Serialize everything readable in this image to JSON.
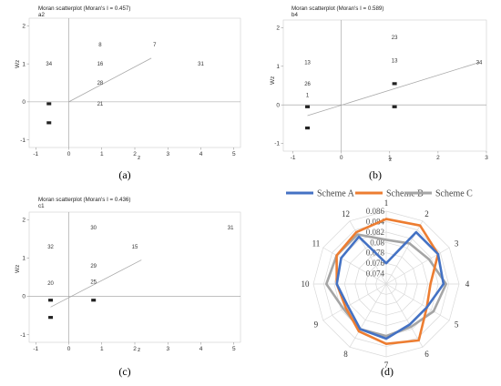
{
  "colors": {
    "schemeA": "#4472C4",
    "schemeB": "#ED7D31",
    "schemeC": "#A5A5A5"
  },
  "chart_data": [
    {
      "type": "scatter",
      "caption": "(a)",
      "title": "Moran scatterplot (Moran's I = 0.457)",
      "subtitle": "a2",
      "xlabel": "z",
      "ylabel": "Wz",
      "xlim": [
        -1.2,
        5.2
      ],
      "ylim": [
        -1.2,
        2.2
      ],
      "xticks": [
        -1,
        0,
        1,
        2,
        3,
        4,
        5
      ],
      "yticks": [
        -1,
        0,
        1,
        2
      ],
      "points": [
        {
          "x": -0.6,
          "y": 1.0,
          "label": "34"
        },
        {
          "x": -0.6,
          "y": -0.05,
          "label": ""
        },
        {
          "x": -0.6,
          "y": -0.55,
          "label": ""
        },
        {
          "x": 0.95,
          "y": 1.5,
          "label": "8"
        },
        {
          "x": 0.95,
          "y": 1.0,
          "label": "16"
        },
        {
          "x": 0.95,
          "y": 0.5,
          "label": "28"
        },
        {
          "x": 0.95,
          "y": -0.05,
          "label": "21"
        },
        {
          "x": 2.6,
          "y": 1.5,
          "label": "7"
        },
        {
          "x": 4.0,
          "y": 1.0,
          "label": "31"
        }
      ],
      "fit": [
        [
          0,
          0
        ],
        [
          2.5,
          1.15
        ]
      ]
    },
    {
      "type": "scatter",
      "caption": "(b)",
      "title": "Moran scatterplot (Moran's I = 0.589)",
      "subtitle": "b4",
      "xlabel": "z",
      "ylabel": "Wz",
      "xlim": [
        -1.2,
        3.0
      ],
      "ylim": [
        -1.2,
        2.2
      ],
      "xticks": [
        -1,
        0,
        1,
        2,
        3
      ],
      "yticks": [
        -1,
        0,
        1,
        2
      ],
      "points": [
        {
          "x": -0.7,
          "y": 1.1,
          "label": "13"
        },
        {
          "x": -0.7,
          "y": 0.55,
          "label": "26"
        },
        {
          "x": -0.7,
          "y": 0.25,
          "label": "1"
        },
        {
          "x": -0.7,
          "y": -0.05,
          "label": ""
        },
        {
          "x": -0.7,
          "y": -0.6,
          "label": ""
        },
        {
          "x": 1.1,
          "y": 1.75,
          "label": "23"
        },
        {
          "x": 1.1,
          "y": 1.15,
          "label": "13"
        },
        {
          "x": 1.1,
          "y": 0.55,
          "label": ""
        },
        {
          "x": 1.1,
          "y": -0.05,
          "label": ""
        },
        {
          "x": 2.85,
          "y": 1.1,
          "label": "34"
        }
      ],
      "fit": [
        [
          -0.7,
          -0.28
        ],
        [
          2.85,
          1.1
        ]
      ]
    },
    {
      "type": "scatter",
      "caption": "(c)",
      "title": "Moran scatterplot (Moran's I = 0.436)",
      "subtitle": "c1",
      "xlabel": "z",
      "ylabel": "Wz",
      "xlim": [
        -1.2,
        5.2
      ],
      "ylim": [
        -1.2,
        2.2
      ],
      "xticks": [
        -1,
        0,
        1,
        2,
        3,
        4,
        5
      ],
      "yticks": [
        -1,
        0,
        1,
        2
      ],
      "points": [
        {
          "x": -0.55,
          "y": 1.3,
          "label": "32"
        },
        {
          "x": -0.55,
          "y": 0.35,
          "label": "20"
        },
        {
          "x": -0.55,
          "y": -0.1,
          "label": ""
        },
        {
          "x": -0.55,
          "y": -0.55,
          "label": ""
        },
        {
          "x": 0.75,
          "y": 1.8,
          "label": "30"
        },
        {
          "x": 0.75,
          "y": 0.8,
          "label": "29"
        },
        {
          "x": 0.75,
          "y": 0.38,
          "label": "25"
        },
        {
          "x": 0.75,
          "y": -0.1,
          "label": ""
        },
        {
          "x": 2.0,
          "y": 1.3,
          "label": "15"
        },
        {
          "x": 4.9,
          "y": 1.8,
          "label": "31"
        }
      ],
      "fit": [
        [
          -0.55,
          -0.28
        ],
        [
          2.2,
          0.95
        ]
      ]
    },
    {
      "type": "radar",
      "caption": "(d)",
      "categories": [
        "1",
        "2",
        "3",
        "4",
        "5",
        "6",
        "7",
        "8",
        "9",
        "10",
        "11",
        "12"
      ],
      "rlim": [
        0.072,
        0.086
      ],
      "rticks": [
        "0.086",
        "0.084",
        "0.082",
        "0.08",
        "0.078",
        "0.076",
        "0.074"
      ],
      "series": [
        {
          "name": "Scheme A",
          "values": [
            0.076,
            0.0835,
            0.0835,
            0.083,
            0.081,
            0.081,
            0.0825,
            0.082,
            0.0805,
            0.0815,
            0.082,
            0.0825
          ]
        },
        {
          "name": "Scheme B",
          "values": [
            0.0845,
            0.085,
            0.0835,
            0.0805,
            0.081,
            0.0845,
            0.0835,
            0.0825,
            0.081,
            0.0815,
            0.083,
            0.0835
          ]
        },
        {
          "name": "Scheme C",
          "values": [
            0.0805,
            0.081,
            0.0815,
            0.0835,
            0.0825,
            0.0815,
            0.082,
            0.082,
            0.0815,
            0.0835,
            0.083,
            0.083
          ]
        }
      ]
    }
  ]
}
